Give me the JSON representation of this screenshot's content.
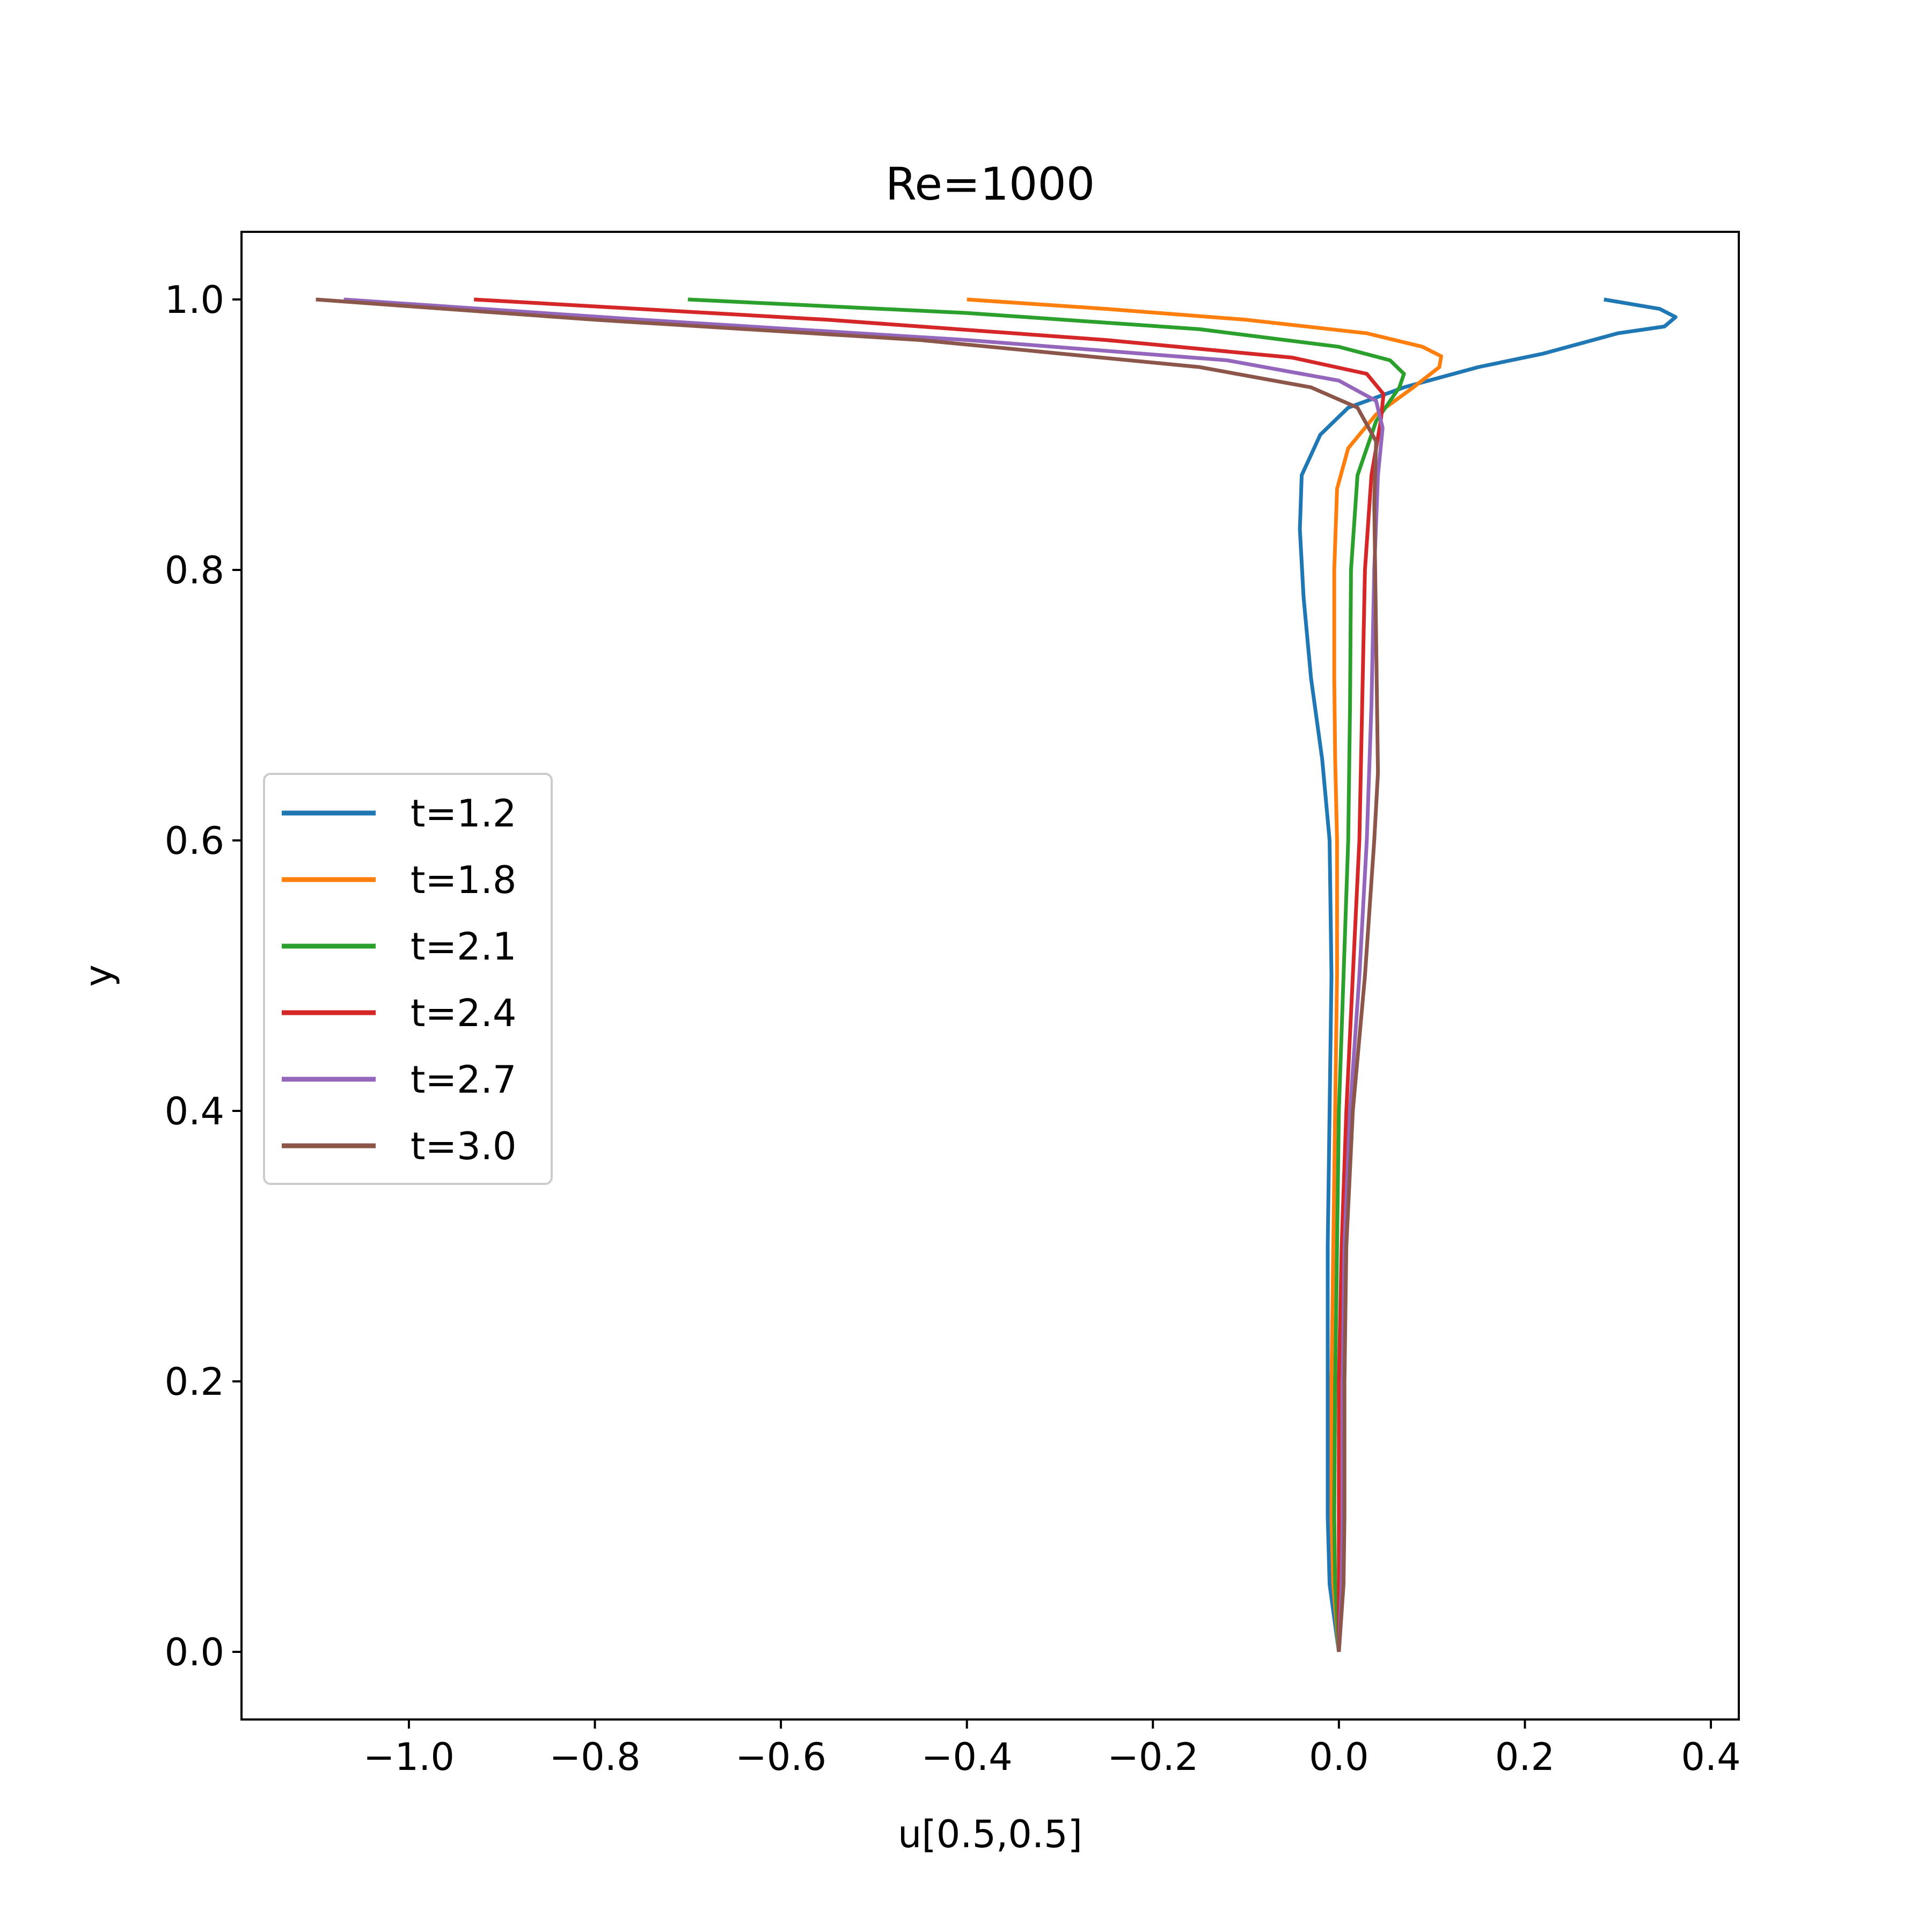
{
  "chart_data": {
    "type": "line",
    "title": "Re=1000",
    "xlabel": "u[0.5,0.5]",
    "ylabel": "y",
    "xlim": [
      -1.18,
      0.43
    ],
    "ylim": [
      -0.05,
      1.05
    ],
    "xticks": [
      -1.0,
      -0.8,
      -0.6,
      -0.4,
      -0.2,
      0.0,
      0.2,
      0.4
    ],
    "xtick_labels": [
      "−1.0",
      "−0.8",
      "−0.6",
      "−0.4",
      "−0.2",
      "0.0",
      "0.2",
      "0.4"
    ],
    "yticks": [
      0.0,
      0.2,
      0.4,
      0.6,
      0.8,
      1.0
    ],
    "ytick_labels": [
      "0.0",
      "0.2",
      "0.4",
      "0.6",
      "0.8",
      "1.0"
    ],
    "grid": false,
    "legend_position": "center-left",
    "series": [
      {
        "name": "t=1.2",
        "color": "#1f77b4",
        "points": [
          [
            0.0,
            0.0
          ],
          [
            -0.01,
            0.05
          ],
          [
            -0.012,
            0.1
          ],
          [
            -0.012,
            0.2
          ],
          [
            -0.012,
            0.3
          ],
          [
            -0.01,
            0.4
          ],
          [
            -0.008,
            0.5
          ],
          [
            -0.01,
            0.6
          ],
          [
            -0.018,
            0.66
          ],
          [
            -0.03,
            0.72
          ],
          [
            -0.038,
            0.78
          ],
          [
            -0.042,
            0.83
          ],
          [
            -0.04,
            0.87
          ],
          [
            -0.02,
            0.9
          ],
          [
            0.01,
            0.92
          ],
          [
            0.07,
            0.935
          ],
          [
            0.15,
            0.95
          ],
          [
            0.22,
            0.96
          ],
          [
            0.3,
            0.975
          ],
          [
            0.35,
            0.98
          ],
          [
            0.362,
            0.987
          ],
          [
            0.345,
            0.993
          ],
          [
            0.285,
            1.0
          ]
        ]
      },
      {
        "name": "t=1.8",
        "color": "#ff7f0e",
        "points": [
          [
            0.0,
            0.0
          ],
          [
            -0.006,
            0.05
          ],
          [
            -0.008,
            0.1
          ],
          [
            -0.008,
            0.2
          ],
          [
            -0.006,
            0.3
          ],
          [
            -0.004,
            0.4
          ],
          [
            -0.002,
            0.5
          ],
          [
            -0.002,
            0.6
          ],
          [
            -0.004,
            0.66
          ],
          [
            -0.005,
            0.72
          ],
          [
            -0.005,
            0.8
          ],
          [
            -0.002,
            0.86
          ],
          [
            0.01,
            0.89
          ],
          [
            0.04,
            0.915
          ],
          [
            0.08,
            0.935
          ],
          [
            0.108,
            0.95
          ],
          [
            0.11,
            0.958
          ],
          [
            0.09,
            0.965
          ],
          [
            0.03,
            0.975
          ],
          [
            -0.1,
            0.985
          ],
          [
            -0.25,
            0.993
          ],
          [
            -0.4,
            1.0
          ]
        ]
      },
      {
        "name": "t=2.1",
        "color": "#2ca02c",
        "points": [
          [
            0.0,
            0.0
          ],
          [
            -0.004,
            0.05
          ],
          [
            -0.005,
            0.1
          ],
          [
            -0.004,
            0.2
          ],
          [
            -0.002,
            0.3
          ],
          [
            0.0,
            0.4
          ],
          [
            0.005,
            0.5
          ],
          [
            0.01,
            0.6
          ],
          [
            0.012,
            0.7
          ],
          [
            0.013,
            0.8
          ],
          [
            0.02,
            0.87
          ],
          [
            0.04,
            0.91
          ],
          [
            0.065,
            0.935
          ],
          [
            0.07,
            0.945
          ],
          [
            0.055,
            0.955
          ],
          [
            0.0,
            0.965
          ],
          [
            -0.15,
            0.978
          ],
          [
            -0.4,
            0.99
          ],
          [
            -0.7,
            1.0
          ]
        ]
      },
      {
        "name": "t=2.4",
        "color": "#d62728",
        "points": [
          [
            0.0,
            0.0
          ],
          [
            0.0,
            0.05
          ],
          [
            0.0,
            0.1
          ],
          [
            0.0,
            0.2
          ],
          [
            0.003,
            0.3
          ],
          [
            0.008,
            0.4
          ],
          [
            0.015,
            0.5
          ],
          [
            0.022,
            0.6
          ],
          [
            0.025,
            0.7
          ],
          [
            0.028,
            0.8
          ],
          [
            0.035,
            0.87
          ],
          [
            0.045,
            0.91
          ],
          [
            0.048,
            0.93
          ],
          [
            0.03,
            0.945
          ],
          [
            -0.05,
            0.957
          ],
          [
            -0.25,
            0.97
          ],
          [
            -0.55,
            0.985
          ],
          [
            -0.93,
            1.0
          ]
        ]
      },
      {
        "name": "t=2.7",
        "color": "#9467bd",
        "points": [
          [
            0.0,
            0.0
          ],
          [
            0.003,
            0.05
          ],
          [
            0.004,
            0.1
          ],
          [
            0.004,
            0.2
          ],
          [
            0.006,
            0.3
          ],
          [
            0.012,
            0.4
          ],
          [
            0.022,
            0.5
          ],
          [
            0.03,
            0.6
          ],
          [
            0.035,
            0.7
          ],
          [
            0.038,
            0.8
          ],
          [
            0.042,
            0.87
          ],
          [
            0.047,
            0.905
          ],
          [
            0.04,
            0.925
          ],
          [
            0.0,
            0.94
          ],
          [
            -0.12,
            0.955
          ],
          [
            -0.4,
            0.97
          ],
          [
            -0.75,
            0.985
          ],
          [
            -1.07,
            1.0
          ]
        ]
      },
      {
        "name": "t=3.0",
        "color": "#8c564b",
        "points": [
          [
            0.0,
            0.0
          ],
          [
            0.005,
            0.05
          ],
          [
            0.006,
            0.1
          ],
          [
            0.006,
            0.2
          ],
          [
            0.008,
            0.3
          ],
          [
            0.015,
            0.4
          ],
          [
            0.028,
            0.5
          ],
          [
            0.038,
            0.6
          ],
          [
            0.042,
            0.65
          ],
          [
            0.04,
            0.75
          ],
          [
            0.038,
            0.85
          ],
          [
            0.04,
            0.895
          ],
          [
            0.02,
            0.92
          ],
          [
            -0.03,
            0.935
          ],
          [
            -0.15,
            0.95
          ],
          [
            -0.45,
            0.97
          ],
          [
            -0.8,
            0.985
          ],
          [
            -1.1,
            1.0
          ]
        ]
      }
    ]
  }
}
